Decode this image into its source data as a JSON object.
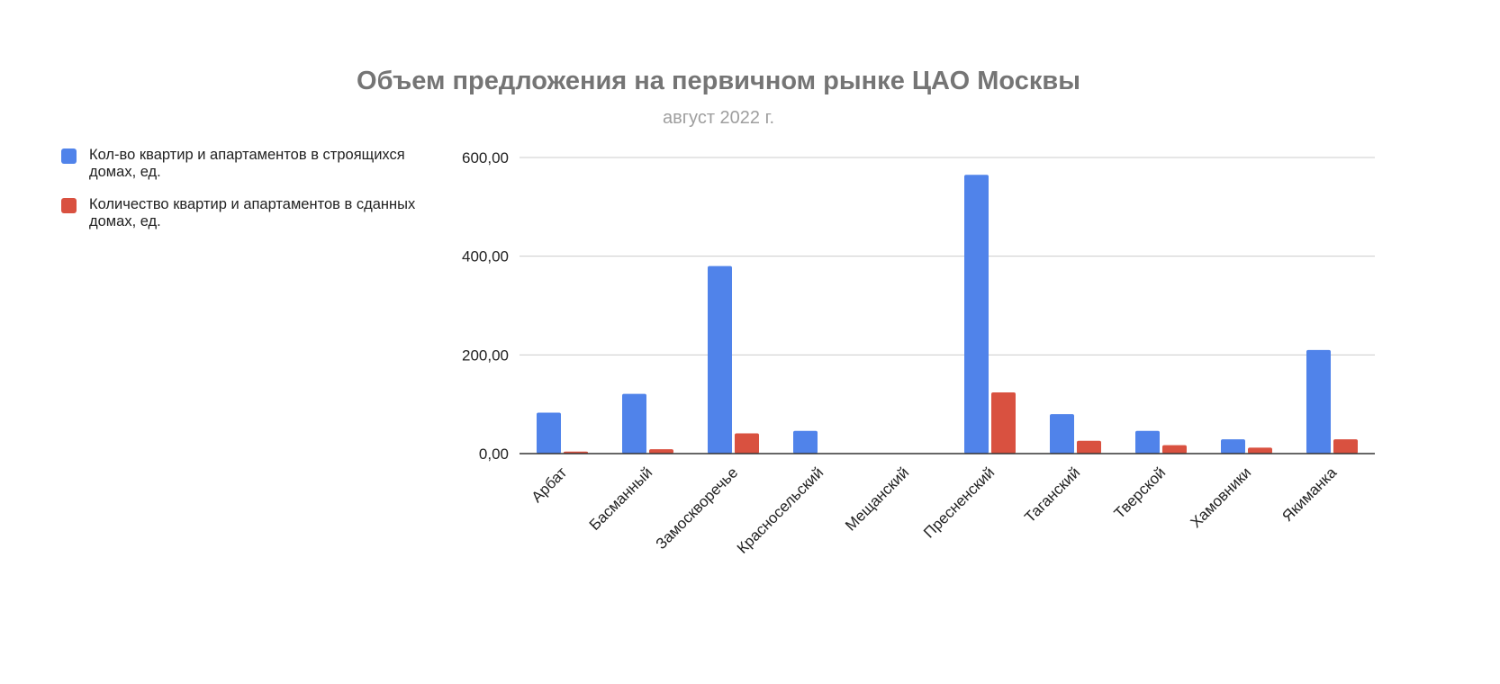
{
  "chart_data": {
    "type": "bar",
    "title": "Объем предложения на первичном рынке ЦАО Москвы",
    "subtitle": "август 2022 г.",
    "xlabel": "",
    "ylabel": "",
    "ylim": [
      0,
      600
    ],
    "yticks": [
      0,
      200,
      400,
      600
    ],
    "ytick_labels": [
      "0,00",
      "200,00",
      "400,00",
      "600,00"
    ],
    "grid": true,
    "legend_position": "left",
    "categories": [
      "Арбат",
      "Басманный",
      "Замоскворечье",
      "Красносельский",
      "Мещанский",
      "Пресненский",
      "Таганский",
      "Тверской",
      "Хамовники",
      "Якиманка"
    ],
    "series": [
      {
        "name": "Кол-во квартир и апартаментов в строящихся домах, ед.",
        "color": "#5083ea",
        "values": [
          83,
          121,
          380,
          46,
          0,
          565,
          80,
          46,
          29,
          210
        ]
      },
      {
        "name": "Количество квартир и апартаментов в сданных домах, ед.",
        "color": "#d95140",
        "values": [
          4,
          9,
          41,
          0,
          0,
          124,
          26,
          17,
          12,
          29
        ]
      }
    ]
  }
}
